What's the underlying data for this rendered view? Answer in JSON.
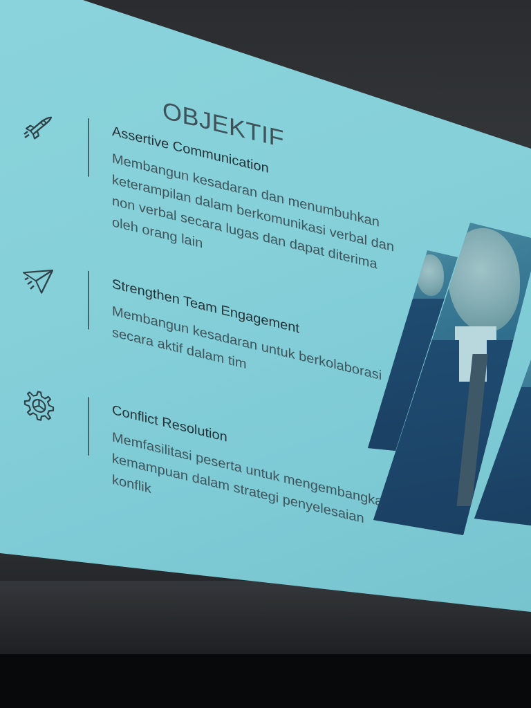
{
  "slide": {
    "title": "OBJEKTIF",
    "items": [
      {
        "icon": "rocket-icon",
        "title": "Assertive Communication",
        "description": "Membangun kesadaran dan menumbuhkan keterampilan dalam berkomunikasi verbal dan non verbal secara lugas dan dapat diterima oleh orang lain"
      },
      {
        "icon": "paper-plane-icon",
        "title": "Strengthen Team Engagement",
        "description": "Membangun kesadaran untuk berkolaborasi secara aktif dalam tim"
      },
      {
        "icon": "gear-icon",
        "title": "Conflict Resolution",
        "description": "Memfasilitasi peserta untuk mengembangkan kemampuan dalam strategi penyelesaian konflik"
      }
    ]
  },
  "colors": {
    "slide_background": "#86d0d9",
    "title_text": "#3d5259",
    "body_text": "#3e545a",
    "photo_tint": "#2f6d8c"
  }
}
